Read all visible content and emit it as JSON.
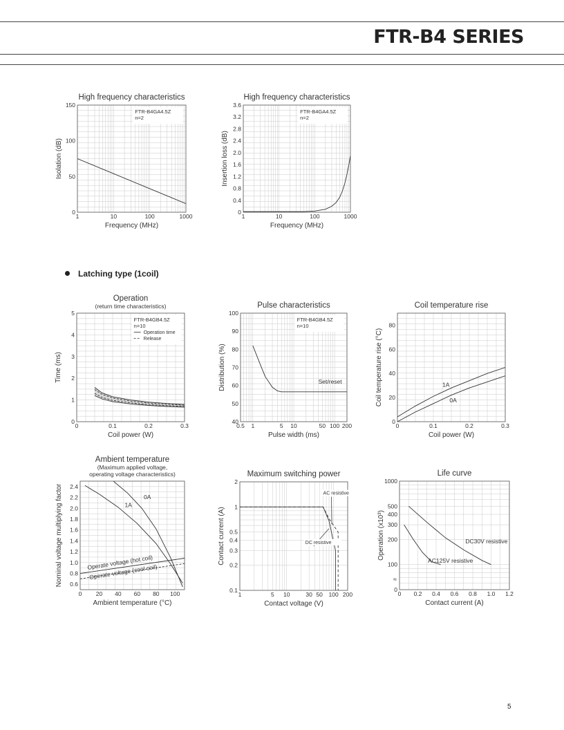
{
  "header": {
    "series_title": "FTR-B4 SERIES"
  },
  "section": {
    "heading": "Latching type (1coil)"
  },
  "footer": {
    "page_number": "5"
  },
  "chart_data": [
    {
      "id": "isolation",
      "type": "line",
      "title": "High frequency characteristics",
      "subtitle": "",
      "xlabel": "Frequency (MHz)",
      "ylabel": "Isolation (dB)",
      "xscale": "log",
      "xlim": [
        1,
        1000
      ],
      "ylim": [
        0,
        150
      ],
      "xticks": [
        1,
        10,
        100,
        1000
      ],
      "xtick_labels": [
        "1",
        "10",
        "100",
        "1000"
      ],
      "yticks": [
        0,
        50,
        100,
        150
      ],
      "ytick_labels": [
        "0",
        "50",
        "100",
        "150"
      ],
      "grid": true,
      "notes": [
        "FTR-B4GA4.5Z",
        "n=2"
      ],
      "series": [
        {
          "values": [
            [
              1,
              75
            ],
            [
              10,
              54
            ],
            [
              100,
              33
            ],
            [
              1000,
              12
            ]
          ]
        }
      ],
      "annotations": []
    },
    {
      "id": "insertion",
      "type": "line",
      "title": "High frequency characteristics",
      "subtitle": "",
      "xlabel": "Frequency (MHz)",
      "ylabel": "Insertion loss (dB)",
      "xscale": "log",
      "xlim": [
        1,
        1000
      ],
      "ylim": [
        0,
        3.6
      ],
      "xticks": [
        1,
        10,
        100,
        1000
      ],
      "xtick_labels": [
        "1",
        "10",
        "100",
        "1000"
      ],
      "yticks": [
        0,
        0.4,
        0.8,
        1.2,
        1.6,
        2.0,
        2.4,
        2.8,
        3.2,
        3.6
      ],
      "ytick_labels": [
        "0",
        "0.4",
        "0.8",
        "1.2",
        "1.6",
        "2.0",
        "2.4",
        "2.8",
        "3.2",
        "3.6"
      ],
      "grid": true,
      "notes": [
        "FTR-B4GA4.5Z",
        "n=2"
      ],
      "series": [
        {
          "values": [
            [
              1,
              0.02
            ],
            [
              50,
              0.02
            ],
            [
              100,
              0.04
            ],
            [
              200,
              0.1
            ],
            [
              300,
              0.2
            ],
            [
              400,
              0.33
            ],
            [
              500,
              0.5
            ],
            [
              600,
              0.72
            ],
            [
              700,
              0.98
            ],
            [
              800,
              1.28
            ],
            [
              900,
              1.58
            ],
            [
              1000,
              1.9
            ]
          ]
        }
      ],
      "annotations": []
    },
    {
      "id": "operation",
      "type": "line",
      "title": "Operation",
      "subtitle": "(return time characteristics)",
      "xlabel": "Coil power (W)",
      "ylabel": "Time (ms)",
      "xscale": "linear",
      "xlim": [
        0,
        0.3
      ],
      "ylim": [
        0,
        5
      ],
      "xticks": [
        0,
        0.1,
        0.2,
        0.3
      ],
      "xtick_labels": [
        "0",
        "0.1",
        "0.2",
        "0.3"
      ],
      "yticks": [
        0,
        1,
        2,
        3,
        4,
        5
      ],
      "ytick_labels": [
        "0",
        "1",
        "2",
        "3",
        "4",
        "5"
      ],
      "grid": true,
      "notes": [
        "FTR-B4GB4.5Z",
        "n=10"
      ],
      "legend": [
        {
          "label": "Operation time",
          "dash": "none"
        },
        {
          "label": "Release",
          "dash": "3,2"
        }
      ],
      "series": [
        {
          "name": "Operation time",
          "dash": "none",
          "values": [
            [
              0.05,
              1.58
            ],
            [
              0.07,
              1.33
            ],
            [
              0.1,
              1.15
            ],
            [
              0.15,
              1.0
            ],
            [
              0.2,
              0.9
            ],
            [
              0.25,
              0.84
            ],
            [
              0.3,
              0.8
            ]
          ]
        },
        {
          "name": "Operation time",
          "dash": "none",
          "values": [
            [
              0.05,
              1.2
            ],
            [
              0.07,
              1.05
            ],
            [
              0.1,
              0.92
            ],
            [
              0.15,
              0.82
            ],
            [
              0.2,
              0.75
            ],
            [
              0.25,
              0.7
            ],
            [
              0.3,
              0.67
            ]
          ]
        },
        {
          "name": "Release",
          "dash": "3,2",
          "values": [
            [
              0.05,
              1.48
            ],
            [
              0.07,
              1.26
            ],
            [
              0.1,
              1.09
            ],
            [
              0.15,
              0.95
            ],
            [
              0.2,
              0.86
            ],
            [
              0.25,
              0.8
            ],
            [
              0.3,
              0.76
            ]
          ]
        },
        {
          "name": "Release",
          "dash": "3,2",
          "values": [
            [
              0.05,
              1.3
            ],
            [
              0.07,
              1.12
            ],
            [
              0.1,
              0.98
            ],
            [
              0.15,
              0.87
            ],
            [
              0.2,
              0.79
            ],
            [
              0.25,
              0.74
            ],
            [
              0.3,
              0.71
            ]
          ]
        }
      ],
      "annotations": []
    },
    {
      "id": "pulse",
      "type": "line",
      "title": "Pulse characteristics",
      "subtitle": "",
      "xlabel": "Pulse width (ms)",
      "ylabel": "Distribution (%)",
      "xscale": "log",
      "xlim": [
        0.5,
        200
      ],
      "ylim": [
        40,
        100
      ],
      "xticks": [
        0.5,
        1,
        5,
        10,
        50,
        100,
        200
      ],
      "xtick_labels": [
        "0.5",
        "1",
        "5",
        "10",
        "50",
        "100",
        "200"
      ],
      "yticks": [
        40,
        50,
        60,
        70,
        80,
        90,
        100
      ],
      "ytick_labels": [
        "40",
        "50",
        "60",
        "70",
        "80",
        "90",
        "100"
      ],
      "grid": true,
      "notes": [
        "FTR-B4GB4.5Z",
        "n=10"
      ],
      "series": [
        {
          "values": [
            [
              1,
              82
            ],
            [
              1.5,
              72
            ],
            [
              2,
              65
            ],
            [
              3,
              59
            ],
            [
              4,
              57
            ],
            [
              5,
              56.5
            ],
            [
              200,
              56.5
            ]
          ]
        }
      ],
      "annotations": [
        {
          "text": "Set/reset",
          "x": 40,
          "y": 61
        }
      ]
    },
    {
      "id": "coiltemp",
      "type": "line",
      "title": "Coil temperature rise",
      "subtitle": "",
      "xlabel": "Coil power (W)",
      "ylabel": "Coil temperature rise (°C)",
      "xscale": "linear",
      "xlim": [
        0,
        0.3
      ],
      "ylim": [
        0,
        90
      ],
      "xticks": [
        0,
        0.1,
        0.2,
        0.3
      ],
      "xtick_labels": [
        "0",
        "0.1",
        "0.2",
        "0.3"
      ],
      "yticks": [
        0,
        20,
        40,
        60,
        80
      ],
      "ytick_labels": [
        "0",
        "20",
        "40",
        "60",
        "80"
      ],
      "grid": true,
      "notes": [],
      "series": [
        {
          "name": "1A",
          "values": [
            [
              0,
              4
            ],
            [
              0.05,
              13
            ],
            [
              0.1,
              21
            ],
            [
              0.15,
              28
            ],
            [
              0.2,
              34
            ],
            [
              0.25,
              40
            ],
            [
              0.3,
              45
            ]
          ]
        },
        {
          "name": "0A",
          "values": [
            [
              0,
              0
            ],
            [
              0.05,
              8
            ],
            [
              0.1,
              15
            ],
            [
              0.15,
              22
            ],
            [
              0.2,
              28
            ],
            [
              0.25,
              33
            ],
            [
              0.3,
              38
            ]
          ]
        }
      ],
      "annotations": [
        {
          "text": "1A",
          "x": 0.125,
          "y": 29
        },
        {
          "text": "0A",
          "x": 0.145,
          "y": 16
        }
      ]
    },
    {
      "id": "ambient",
      "type": "line",
      "title": "Ambient temperature",
      "subtitle": "(Maximum applied voltage,\noperating voltage characteristics)",
      "xlabel": "Ambient temperature (°C)",
      "ylabel": "Nominal voltage multiplying factor",
      "xscale": "linear",
      "xlim": [
        0,
        110
      ],
      "ylim": [
        0.5,
        2.5
      ],
      "xticks": [
        0,
        20,
        40,
        60,
        80,
        100
      ],
      "xtick_labels": [
        "0",
        "20",
        "40",
        "60",
        "80",
        "100"
      ],
      "yticks": [
        0.6,
        0.8,
        1.0,
        1.2,
        1.4,
        1.6,
        1.8,
        2.0,
        2.2,
        2.4
      ],
      "ytick_labels": [
        "0.6",
        "0.8",
        "1.0",
        "1.2",
        "1.4",
        "1.6",
        "1.8",
        "2.0",
        "2.2",
        "2.4"
      ],
      "grid": true,
      "notes": [],
      "series": [
        {
          "name": "0A",
          "dash": "none",
          "values": [
            [
              35,
              2.5
            ],
            [
              50,
              2.28
            ],
            [
              65,
              2.0
            ],
            [
              80,
              1.62
            ],
            [
              95,
              1.1
            ],
            [
              108,
              0.55
            ]
          ]
        },
        {
          "name": "1A",
          "dash": "none",
          "values": [
            [
              5,
              2.42
            ],
            [
              20,
              2.26
            ],
            [
              40,
              2.02
            ],
            [
              60,
              1.72
            ],
            [
              80,
              1.35
            ],
            [
              95,
              0.98
            ],
            [
              108,
              0.62
            ]
          ]
        },
        {
          "name": "Operate voltage (hot coil)",
          "dash": "none",
          "values": [
            [
              0,
              0.8
            ],
            [
              110,
              1.08
            ]
          ]
        },
        {
          "name": "Operate voltage (cool coil)",
          "dash": "3,2",
          "values": [
            [
              0,
              0.7
            ],
            [
              110,
              0.98
            ]
          ]
        }
      ],
      "annotations": [
        {
          "text": "0A",
          "x": 67,
          "y": 2.17
        },
        {
          "text": "1A",
          "x": 47,
          "y": 2.02
        },
        {
          "text": "Operate voltage (hot coil)",
          "x": 8,
          "y": 0.87,
          "rotate": -9
        },
        {
          "text": "Operate voltage (cool coil)",
          "x": 10,
          "y": 0.69,
          "rotate": -9
        }
      ]
    },
    {
      "id": "switching",
      "type": "line",
      "title": "Maximum switching power",
      "subtitle": "",
      "xlabel": "Contact voltage (V)",
      "ylabel": "Contact current (A)",
      "xscale": "log",
      "xlim": [
        1,
        200
      ],
      "yscale": "log",
      "ylim": [
        0.1,
        2
      ],
      "xticks": [
        1,
        5,
        10,
        30,
        50,
        100,
        200
      ],
      "xtick_labels": [
        "1",
        "5",
        "10",
        "30",
        "50",
        "100",
        "200"
      ],
      "yticks": [
        0.1,
        0.2,
        0.3,
        0.4,
        0.5,
        1,
        2
      ],
      "ytick_labels": [
        "0.1",
        "0.2",
        "0.3",
        "0.4",
        "0.5",
        "1",
        "2"
      ],
      "grid": true,
      "notes": [],
      "series": [
        {
          "name": "AC resistive",
          "dash": "4,3",
          "values": [
            [
              1,
              1
            ],
            [
              60,
              1
            ],
            [
              80,
              0.72
            ],
            [
              125,
              0.5
            ],
            [
              125,
              0.1
            ]
          ]
        },
        {
          "name": "DC resistive",
          "dash": "none",
          "values": [
            [
              1,
              1
            ],
            [
              60,
              1
            ],
            [
              80,
              0.68
            ],
            [
              110,
              0.3
            ],
            [
              110,
              0.1
            ]
          ]
        }
      ],
      "annotations": [
        {
          "text": "AC resistive",
          "x": 60,
          "y": 1.4,
          "arrow_to": [
            92,
            0.62
          ]
        },
        {
          "text": "DC resistive",
          "x": 25,
          "y": 0.36,
          "arrow_to": [
            80,
            0.55
          ]
        }
      ]
    },
    {
      "id": "life",
      "type": "line",
      "title": "Life curve",
      "subtitle": "",
      "xlabel": "Contact current (A)",
      "ylabel": "Operation (x10³)",
      "xscale": "linear",
      "xlim": [
        0,
        1.2
      ],
      "yscale": "log",
      "ylim": [
        50,
        1000
      ],
      "xticks": [
        0,
        0.2,
        0.4,
        0.6,
        0.8,
        1.0,
        1.2
      ],
      "xtick_labels": [
        "0",
        "0.2",
        "0.4",
        "0.6",
        "0.8",
        "1.0",
        "1.2"
      ],
      "yticks": [
        100,
        200,
        300,
        400,
        500,
        1000
      ],
      "ytick_labels": [
        "100",
        "200",
        "300",
        "400",
        "500",
        "1000"
      ],
      "y_zero_label": "0",
      "grid": true,
      "notes": [],
      "series": [
        {
          "name": "DC30V resistive",
          "values": [
            [
              0.1,
              500
            ],
            [
              0.3,
              320
            ],
            [
              0.5,
              210
            ],
            [
              0.7,
              150
            ],
            [
              0.9,
              112
            ],
            [
              1.0,
              100
            ]
          ]
        },
        {
          "name": "AC125V resistive",
          "values": [
            [
              0.05,
              300
            ],
            [
              0.15,
              200
            ],
            [
              0.25,
              140
            ],
            [
              0.35,
              108
            ],
            [
              0.45,
              100
            ]
          ]
        }
      ],
      "annotations": [
        {
          "text": "DC30V resistive",
          "x": 0.72,
          "y": 180
        },
        {
          "text": "AC125V resistive",
          "x": 0.31,
          "y": 105
        }
      ]
    }
  ]
}
